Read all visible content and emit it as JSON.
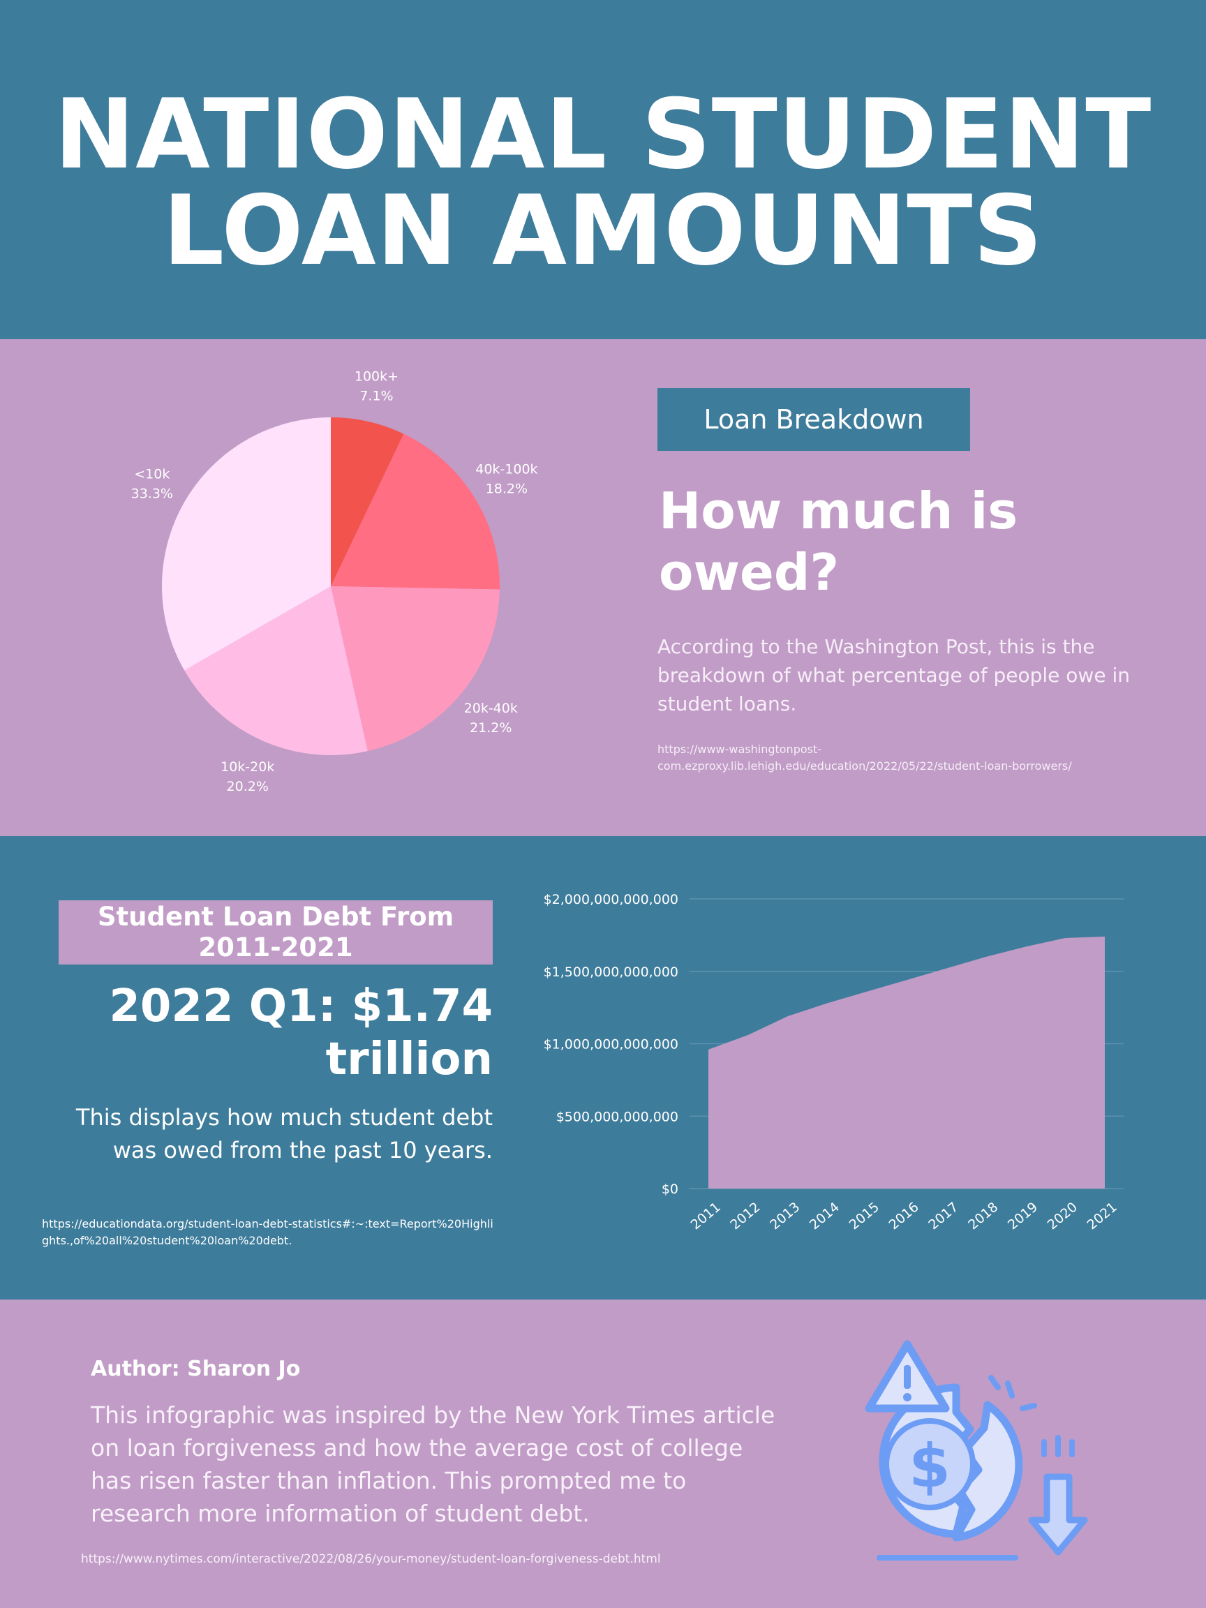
{
  "title": {
    "line1": "NATIONAL STUDENT",
    "line2": "LOAN AMOUNTS"
  },
  "breakdown": {
    "tag": "Loan Breakdown",
    "heading": "How much is owed?",
    "description": "According to the Washington Post, this is the breakdown of what percentage of people owe in student loans.",
    "source_url": "https://www-washingtonpost-com.ezproxy.lib.lehigh.edu/education/2022/05/22/student-loan-borrowers/"
  },
  "debt": {
    "tag": "Student Loan Debt From 2011-2021",
    "value": "2022 Q1: $1.74 trillion",
    "description": "This displays how much student debt was owed from the past 10 years.",
    "source_url": "https://educationdata.org/student-loan-debt-statistics#:~:text=Report%20Highlights.,of%20all%20student%20loan%20debt."
  },
  "footer": {
    "author": "Author: Sharon Jo",
    "description": "This infographic was inspired by the New York Times article on loan forgiveness and how the average cost of college has risen faster than inflation. This prompted me to research more information of student debt.",
    "source_url": "https://www.nytimes.com/interactive/2022/08/26/your-money/student-loan-forgiveness-debt.html",
    "icon": "broken-dollar-coin-warning-icon"
  },
  "colors": {
    "blue": "#3e7c9b",
    "purple": "#c09cc6",
    "icon_blue": "#6c9cf4"
  },
  "chart_data": [
    {
      "type": "pie",
      "slices": [
        {
          "category": "100k+",
          "percent_label": "7.1%",
          "value": 7.1,
          "color": "#f2534c"
        },
        {
          "category": "40k-100k",
          "percent_label": "18.2%",
          "value": 18.2,
          "color": "#ff6e83"
        },
        {
          "category": "20k-40k",
          "percent_label": "21.2%",
          "value": 21.2,
          "color": "#ff98bd"
        },
        {
          "category": "10k-20k",
          "percent_label": "20.2%",
          "value": 20.2,
          "color": "#ffbde6"
        },
        {
          "category": "<10k",
          "percent_label": "33.3%",
          "value": 33.3,
          "color": "#ffe1fb"
        }
      ]
    },
    {
      "type": "area",
      "x": [
        "2011",
        "2012",
        "2013",
        "2014",
        "2015",
        "2016",
        "2017",
        "2018",
        "2019",
        "2020",
        "2021"
      ],
      "values": [
        960000000000,
        1060000000000,
        1190000000000,
        1280000000000,
        1360000000000,
        1440000000000,
        1520000000000,
        1600000000000,
        1670000000000,
        1730000000000,
        1740000000000
      ],
      "ylim": [
        0,
        2000000000000
      ],
      "y_ticks": [
        0,
        500000000000,
        1000000000000,
        1500000000000,
        2000000000000
      ],
      "y_tick_labels": [
        "$0",
        "$500,000,000,000",
        "$1,000,000,000,000",
        "$1,500,000,000,000",
        "$2,000,000,000,000"
      ],
      "color": "#c09cc6",
      "grid": true
    }
  ]
}
